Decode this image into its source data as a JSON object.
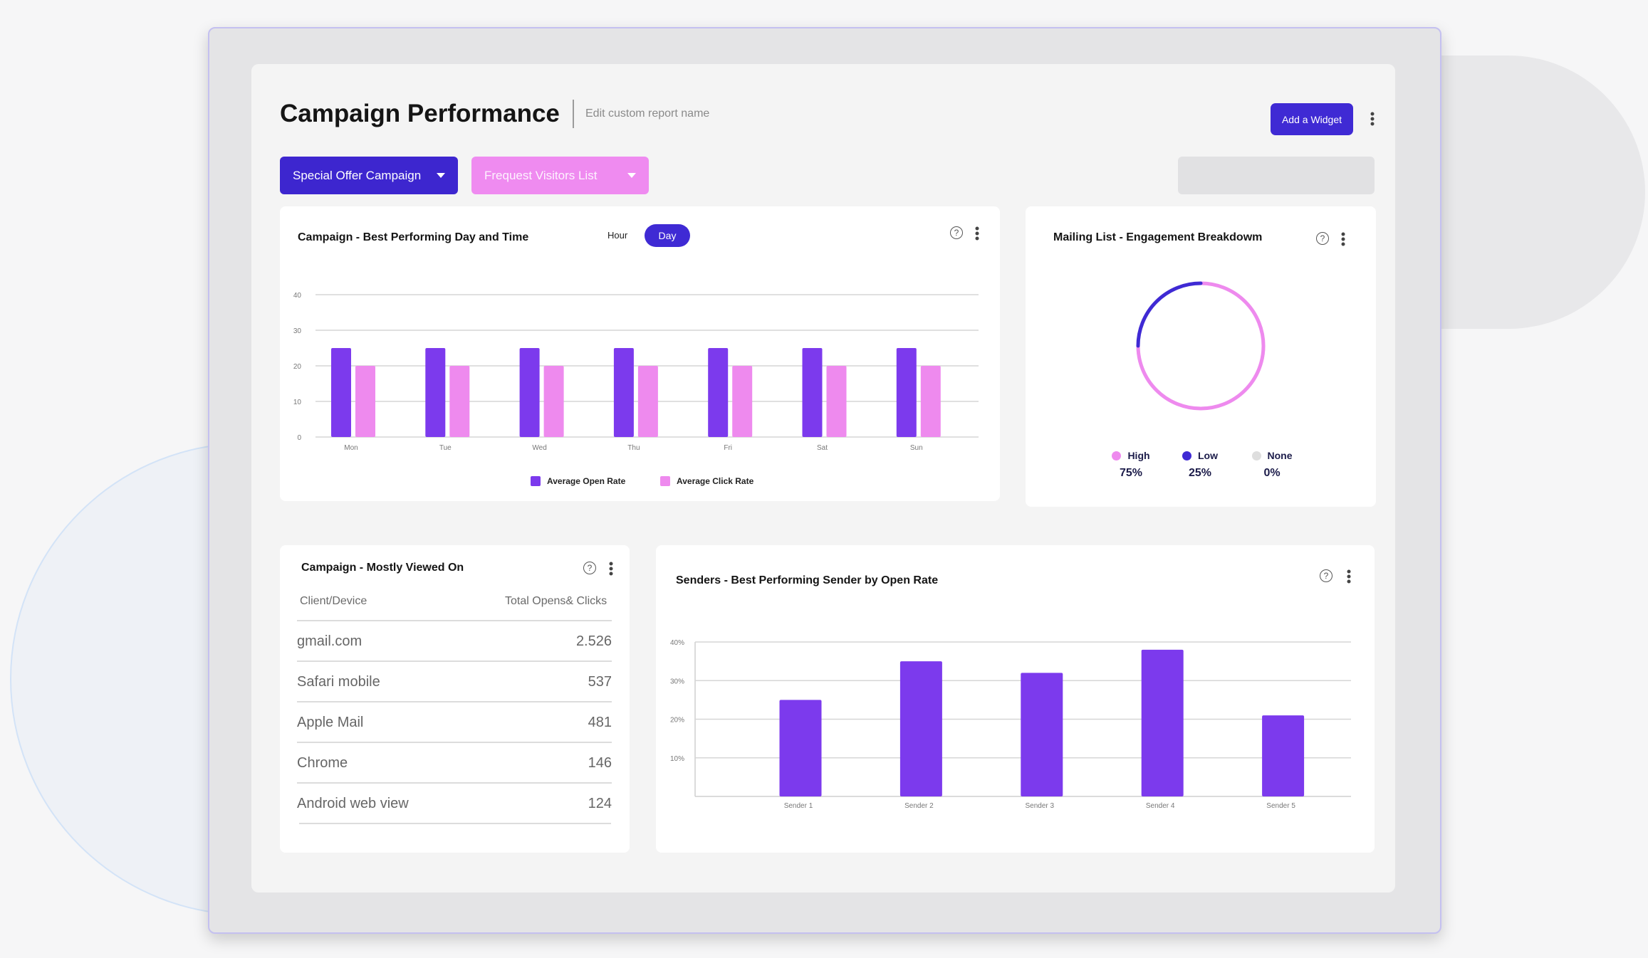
{
  "header": {
    "title": "Campaign Performance",
    "edit_hint": "Edit custom report name",
    "add_widget": "Add a Widget"
  },
  "filters": {
    "campaign": "Special Offer Campaign",
    "list": "Frequest Visitors List"
  },
  "colors": {
    "accent": "#3f2ad4",
    "open": "#7c3aed",
    "click": "#ee8aee",
    "pink": "#ef8bf0"
  },
  "icons": [
    "help-icon",
    "kebab-menu-icon",
    "caret-down-icon"
  ],
  "day_time_card": {
    "title": "Campaign - Best Performing Day and Time",
    "toggle_hour": "Hour",
    "toggle_day": "Day"
  },
  "engagement_card": {
    "title": "Mailing List - Engagement Breakdowm",
    "items": [
      {
        "label": "High",
        "value": "75%",
        "color": "#ee8aee"
      },
      {
        "label": "Low",
        "value": "25%",
        "color": "#3f2ad4"
      },
      {
        "label": "None",
        "value": "0%",
        "color": "#dedede"
      }
    ]
  },
  "viewed_card": {
    "title": "Campaign - Mostly Viewed On",
    "col_client": "Client/Device",
    "col_total": "Total Opens& Clicks",
    "rows": [
      {
        "client": "gmail.com",
        "total": "2.526"
      },
      {
        "client": "Safari mobile",
        "total": "537"
      },
      {
        "client": "Apple Mail",
        "total": "481"
      },
      {
        "client": "Chrome",
        "total": "146"
      },
      {
        "client": "Android web view",
        "total": "124"
      }
    ]
  },
  "senders_card": {
    "title": "Senders - Best Performing Sender by Open Rate"
  },
  "chart_data": [
    {
      "type": "bar",
      "categories": [
        "Mon",
        "Tue",
        "Wed",
        "Thu",
        "Fri",
        "Sat",
        "Sun"
      ],
      "series": [
        {
          "name": "Average Open Rate",
          "values": [
            25,
            25,
            25,
            25,
            25,
            25,
            25
          ]
        },
        {
          "name": "Average Click Rate",
          "values": [
            20,
            20,
            20,
            20,
            20,
            20,
            20
          ]
        }
      ],
      "yticks": [
        "0",
        "10",
        "20",
        "30",
        "40"
      ],
      "ylim": [
        0,
        40
      ],
      "grid": true,
      "legend": "bottom"
    },
    {
      "type": "pie",
      "categories": [
        "High",
        "Low",
        "None"
      ],
      "values": [
        75,
        25,
        0
      ],
      "legend": "bottom"
    },
    {
      "type": "bar",
      "categories": [
        "Sender 1",
        "Sender 2",
        "Sender 3",
        "Sender 4",
        "Sender 5"
      ],
      "values": [
        25,
        35,
        32,
        38,
        21
      ],
      "yticks": [
        "10%",
        "20%",
        "30%",
        "40%"
      ],
      "ylim": [
        0,
        40
      ],
      "grid": true
    }
  ]
}
